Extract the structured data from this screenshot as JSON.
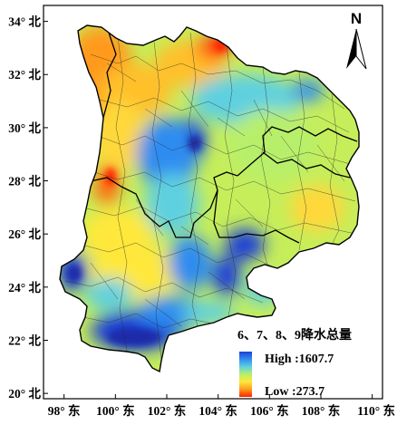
{
  "map": {
    "north_arrow": {
      "letter": "N"
    },
    "y_ticks": [
      {
        "label": "34° 北",
        "lat": 34
      },
      {
        "label": "32° 北",
        "lat": 32
      },
      {
        "label": "30° 北",
        "lat": 30
      },
      {
        "label": "28° 北",
        "lat": 28
      },
      {
        "label": "26° 北",
        "lat": 26
      },
      {
        "label": "24° 北",
        "lat": 24
      },
      {
        "label": "22° 北",
        "lat": 22
      },
      {
        "label": "20° 北",
        "lat": 20
      }
    ],
    "x_ticks": [
      {
        "label": "98° 东",
        "lon": 98
      },
      {
        "label": "100° 东",
        "lon": 100
      },
      {
        "label": "102° 东",
        "lon": 102
      },
      {
        "label": "104° 东",
        "lon": 104
      },
      {
        "label": "106° 东",
        "lon": 106
      },
      {
        "label": "108° 东",
        "lon": 108
      },
      {
        "label": "110° 东",
        "lon": 110
      }
    ],
    "extent": {
      "lon_min": 97.2,
      "lon_max": 110.4,
      "lat_min": 19.8,
      "lat_max": 34.6
    },
    "legend": {
      "title": "6、7、8、9降水总量",
      "high_label": "High :1607.7",
      "low_label": "Low :273.7",
      "high_value": 1607.7,
      "low_value": 273.7,
      "colors": [
        "#1f3fd6",
        "#2f8cf0",
        "#5fd0e0",
        "#b8ef6a",
        "#ffe83a",
        "#ff9a1e",
        "#ff2200"
      ]
    }
  }
}
